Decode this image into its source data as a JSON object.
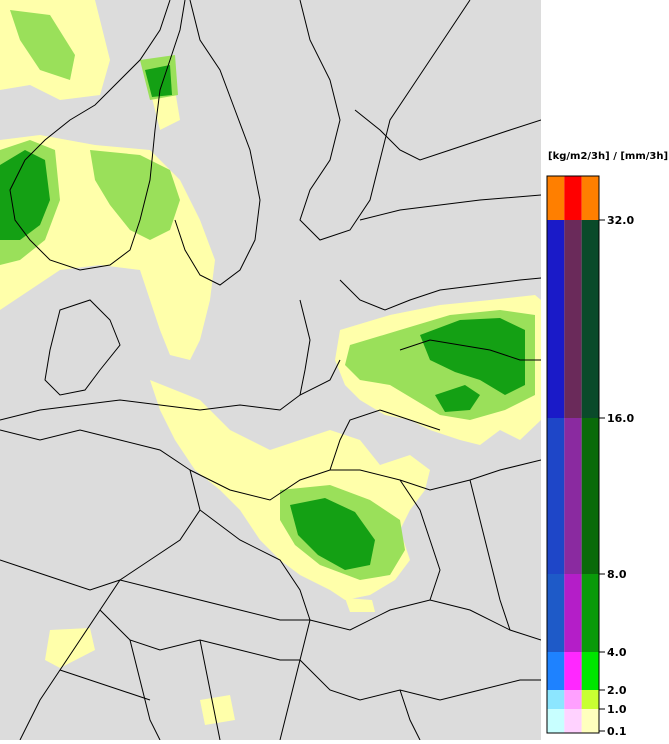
{
  "legend": {
    "unit_label": "[kg/m2/3h] / [mm/3h]",
    "ticks": [
      "32.0",
      "16.0",
      "8.0",
      "4.0",
      "2.0",
      "1.0",
      "0.1"
    ],
    "bands": [
      {
        "colors": [
          "#ff7f00",
          "#ff0000",
          "#ff7f00"
        ]
      },
      {
        "colors": [
          "#1a1ac8",
          "#6a2a5a",
          "#0a4a2a"
        ]
      },
      {
        "colors": [
          "#1e46c8",
          "#8a2aa0",
          "#0a6a0a"
        ]
      },
      {
        "colors": [
          "#1e5ac8",
          "#b41ec8",
          "#0a9a0a"
        ]
      },
      {
        "colors": [
          "#1e82ff",
          "#ff28ff",
          "#00e600"
        ]
      },
      {
        "colors": [
          "#8ce6ff",
          "#ffa0ff",
          "#c8ff32"
        ]
      },
      {
        "colors": [
          "#c8ffff",
          "#ffd2ff",
          "#ffffbe"
        ]
      }
    ]
  },
  "map": {
    "background_color": "#dcdcdc",
    "precip_light_color": "#ffffaa",
    "precip_medium_color": "#9ae05a",
    "precip_heavy_color": "#14a014"
  }
}
